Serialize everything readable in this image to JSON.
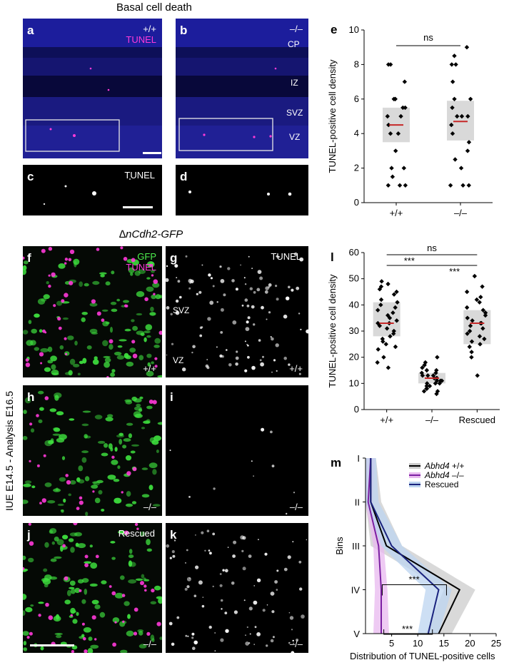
{
  "figure_title": "Basal cell death",
  "section_title": "∆nCdh2-GFP",
  "side_label": "IUE E14.5 - Analysis E16.5",
  "panels": {
    "a": {
      "label": "a",
      "genotype": "+/+",
      "stain": "TUNEL"
    },
    "b": {
      "label": "b",
      "genotype": "–/–",
      "layers": [
        "CP",
        "IZ",
        "SVZ",
        "VZ"
      ]
    },
    "c": {
      "label": "c",
      "stain": "TUNEL"
    },
    "d": {
      "label": "d"
    },
    "f": {
      "label": "f",
      "stain1": "GFP",
      "stain2": "TUNEL",
      "genotype": "+/+"
    },
    "g": {
      "label": "g",
      "stain": "TUNEL",
      "zone1": "SVZ",
      "zone2": "VZ",
      "genotype": "+/+"
    },
    "h": {
      "label": "h",
      "genotype": "–/–"
    },
    "i": {
      "label": "i",
      "genotype": "–/–"
    },
    "j": {
      "label": "j",
      "condition": "Rescued",
      "genotype": "–/–"
    },
    "k": {
      "label": "k",
      "genotype": "–/–"
    }
  },
  "colors": {
    "dapi": "#0d0f58",
    "tunel": "#ff3ad9",
    "gfp": "#3ee03e",
    "median": "#c62828",
    "box": "#d9d9d9",
    "wt_band": "#cccccc",
    "ko_line": "#7b1fa2",
    "ko_band": "#e8b8ef",
    "res_line": "#1a237e",
    "res_band": "#bcd4f0"
  },
  "chart_data": [
    {
      "panel": "e",
      "type": "scatter",
      "ylabel": "TUNEL-positive cell density",
      "ylim": [
        0,
        10
      ],
      "yticks": [
        0,
        2,
        4,
        6,
        8,
        10
      ],
      "categories": [
        "+/+",
        "–/–"
      ],
      "groups": [
        {
          "category": "+/+",
          "median": 4.5,
          "box": [
            3.5,
            5.5
          ],
          "values": [
            8,
            8,
            7,
            6,
            6,
            6,
            5.5,
            5.5,
            5,
            5,
            4.5,
            4,
            4,
            3,
            2,
            2,
            1.5,
            1,
            1,
            1
          ]
        },
        {
          "category": "–/–",
          "median": 4.7,
          "box": [
            3.6,
            5.9
          ],
          "values": [
            9,
            8.5,
            8,
            8,
            7,
            6,
            6,
            5.5,
            5,
            5,
            5,
            4.5,
            4,
            3.5,
            3,
            2.5,
            2,
            1,
            1,
            1
          ]
        }
      ],
      "significance": [
        {
          "from": "+/+",
          "to": "–/–",
          "label": "ns"
        }
      ]
    },
    {
      "panel": "l",
      "type": "scatter",
      "ylabel": "TUNEL-positive cell density",
      "ylim": [
        0,
        60
      ],
      "yticks": [
        0,
        10,
        20,
        30,
        40,
        50,
        60
      ],
      "categories": [
        "+/+",
        "–/–",
        "Rescued"
      ],
      "groups": [
        {
          "category": "+/+",
          "median": 33,
          "box": [
            28,
            41
          ],
          "values": [
            49,
            48,
            47,
            46,
            45,
            44,
            42,
            41,
            40,
            39,
            38,
            37,
            36,
            35,
            34,
            33,
            33,
            32,
            31,
            30,
            29,
            28,
            27,
            26,
            25,
            24,
            23,
            20,
            18,
            16
          ]
        },
        {
          "category": "–/–",
          "median": 12,
          "box": [
            10,
            14
          ],
          "values": [
            20,
            18,
            17,
            16,
            15,
            15,
            14,
            14,
            13,
            13,
            13,
            12,
            12,
            12,
            11,
            11,
            11,
            10,
            10,
            10,
            9,
            9,
            8,
            8,
            7,
            7,
            6
          ]
        },
        {
          "category": "Rescued",
          "median": 33,
          "box": [
            25,
            38
          ],
          "values": [
            51,
            47,
            45,
            43,
            42,
            41,
            39,
            38,
            37,
            36,
            35,
            34,
            33,
            33,
            32,
            31,
            30,
            29,
            28,
            27,
            26,
            25,
            24,
            22,
            20,
            13
          ]
        }
      ],
      "significance": [
        {
          "from": "+/+",
          "to": "–/–",
          "label": "***"
        },
        {
          "from": "–/–",
          "to": "Rescued",
          "label": "***"
        },
        {
          "from": "+/+",
          "to": "Rescued",
          "label": "ns"
        }
      ]
    },
    {
      "panel": "m",
      "type": "line",
      "xlabel": "Distribution of TUNEL-positive cells",
      "ylabel": "Bins",
      "xlim": [
        0,
        25
      ],
      "xticks": [
        5,
        10,
        15,
        20,
        25
      ],
      "bins": [
        "I",
        "II",
        "III",
        "IV",
        "V"
      ],
      "series": [
        {
          "name": "Abhd4",
          "suffix": "+/+",
          "values": [
            1,
            1,
            4,
            18,
            14
          ],
          "band": [
            1,
            2,
            3,
            3,
            2.5
          ]
        },
        {
          "name": "Abhd4",
          "suffix": "–/–",
          "values": [
            1,
            0.5,
            2.5,
            3,
            3
          ],
          "band": [
            0.8,
            0.8,
            1,
            1.2,
            1.5
          ]
        },
        {
          "name": "Rescued",
          "suffix": "",
          "values": [
            1,
            1,
            5,
            14,
            12
          ],
          "band": [
            1,
            1.5,
            2,
            2.5,
            2
          ]
        }
      ],
      "significance": [
        {
          "bin": "IV",
          "label": "***"
        },
        {
          "bin": "V",
          "label": "***"
        }
      ]
    }
  ]
}
